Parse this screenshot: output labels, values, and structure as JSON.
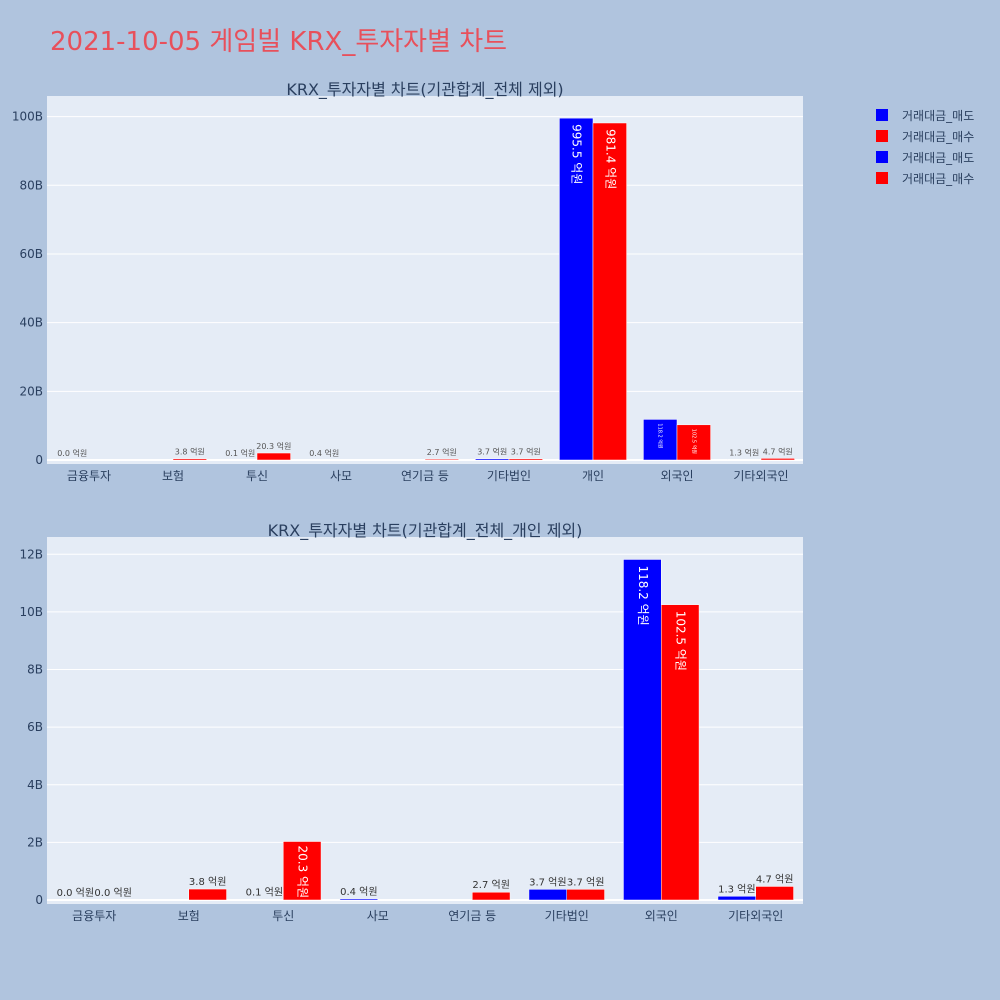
{
  "page": {
    "title": "2021-10-05 게임빌 KRX_투자자별 차트",
    "title_color": "#e8505b",
    "background": "#b0c4de",
    "plot_background": "#e5ecf6"
  },
  "legend": {
    "placement": "top-right",
    "items": [
      {
        "label": "거래대금_매도",
        "color": "#0000ff"
      },
      {
        "label": "거래대금_매수",
        "color": "#ff0000"
      },
      {
        "label": "거래대금_매도",
        "color": "#0000ff"
      },
      {
        "label": "거래대금_매수",
        "color": "#ff0000"
      }
    ]
  },
  "chart_data": [
    {
      "type": "bar",
      "title": "KRX_투자자별 차트(기관합계_전체 제외)",
      "categories": [
        "금융투자",
        "보험",
        "투신",
        "사모",
        "연기금 등",
        "기타법인",
        "개인",
        "외국인",
        "기타외국인"
      ],
      "ylim": [
        0,
        106
      ],
      "yticks": [
        0,
        20,
        40,
        60,
        80,
        100
      ],
      "ytick_labels": [
        "0",
        "20B",
        "40B",
        "60B",
        "80B",
        "100B"
      ],
      "grid": true,
      "series": [
        {
          "name": "거래대금_매도",
          "color": "#0000ff",
          "values": [
            0.0,
            0.0,
            0.01,
            0.04,
            0.0,
            0.37,
            99.55,
            11.82,
            0.13
          ],
          "labels": [
            "0.0 억원",
            "",
            "0.1 억원",
            "0.4 억원",
            "",
            "3.7 억원",
            "995.5 억원",
            "118.2 억원",
            "1.3 억원"
          ]
        },
        {
          "name": "거래대금_매수",
          "color": "#ff0000",
          "values": [
            0.0,
            0.38,
            2.03,
            0.0,
            0.27,
            0.37,
            98.14,
            10.25,
            0.47
          ],
          "labels": [
            "",
            "3.8 억원",
            "20.3 억원",
            "",
            "2.7 억원",
            "3.7 억원",
            "981.4 억원",
            "102.5 억원",
            "4.7 억원"
          ]
        }
      ]
    },
    {
      "type": "bar",
      "title": "KRX_투자자별 차트(기관합계_전체_개인 제외)",
      "categories": [
        "금융투자",
        "보험",
        "투신",
        "사모",
        "연기금 등",
        "기타법인",
        "외국인",
        "기타외국인"
      ],
      "ylim": [
        0,
        12.6
      ],
      "yticks": [
        0,
        2,
        4,
        6,
        8,
        10,
        12
      ],
      "ytick_labels": [
        "0",
        "2B",
        "4B",
        "6B",
        "8B",
        "10B",
        "12B"
      ],
      "grid": true,
      "series": [
        {
          "name": "거래대금_매도",
          "color": "#0000ff",
          "values": [
            0.0,
            0.0,
            0.01,
            0.04,
            0.0,
            0.37,
            11.82,
            0.13
          ],
          "labels": [
            "0.0 억원",
            "",
            "0.1 억원",
            "0.4 억원",
            "",
            "3.7 억원",
            "118.2 억원",
            "1.3 억원"
          ]
        },
        {
          "name": "거래대금_매수",
          "color": "#ff0000",
          "values": [
            0.0,
            0.38,
            2.03,
            0.0,
            0.27,
            0.37,
            10.25,
            0.47
          ],
          "labels": [
            "0.0 억원",
            "3.8 억원",
            "20.3 억원",
            "",
            "2.7 억원",
            "3.7 억원",
            "102.5 억원",
            "4.7 억원"
          ]
        }
      ]
    }
  ]
}
